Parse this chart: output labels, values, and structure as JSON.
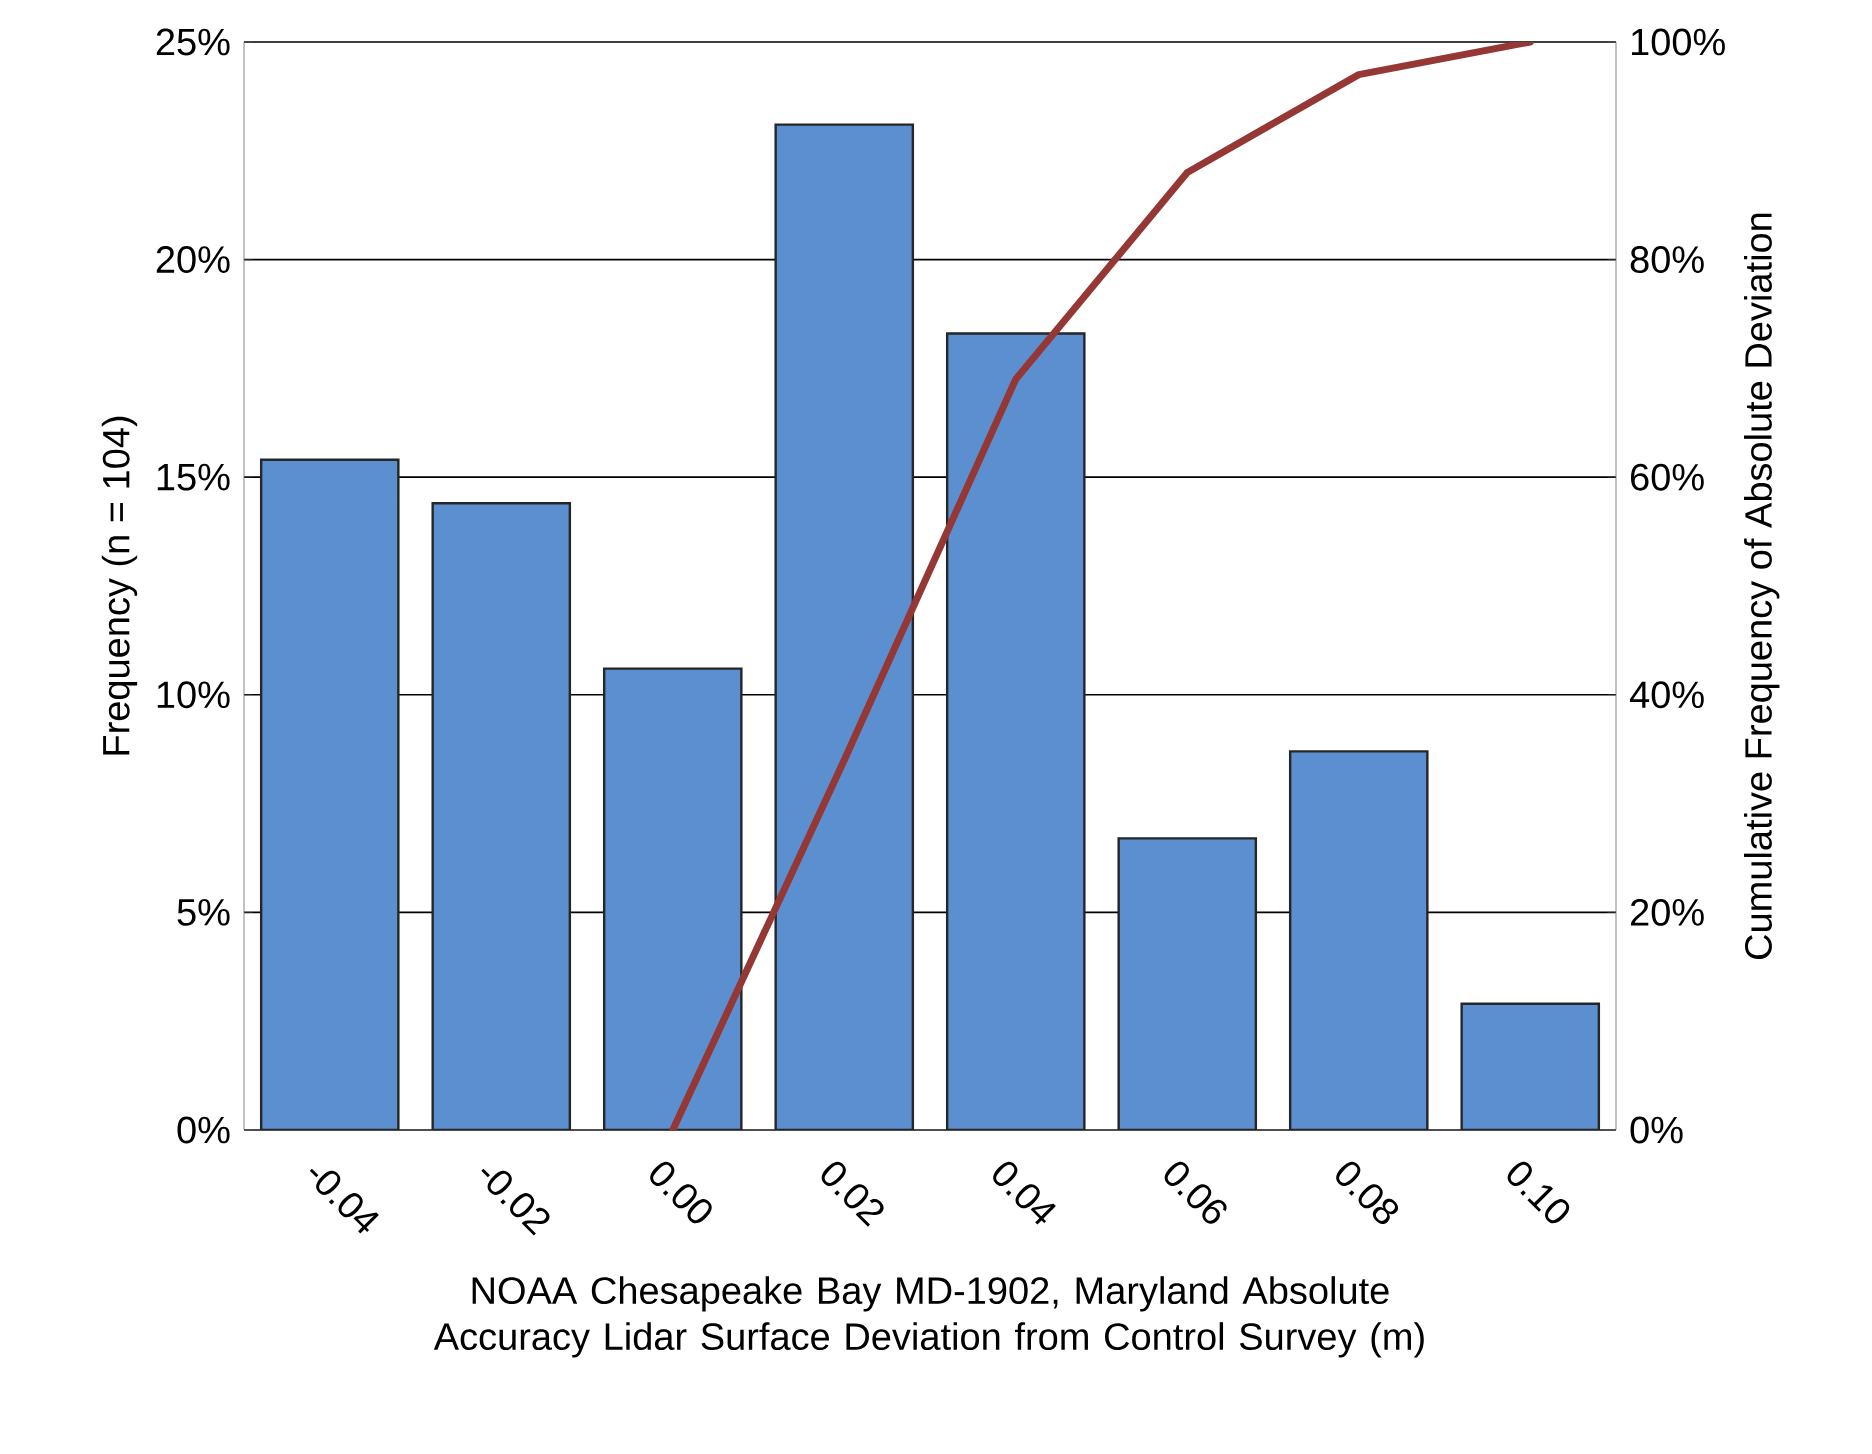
{
  "chart_data": {
    "type": "bar",
    "xlabel": "NOAA Chesapeake Bay MD-1902, Maryland Absolute Accuracy Lidar Surface Deviation from Control Survey (m)",
    "ylabel": "Frequency (n = 104)",
    "y2label": "Cumulative Frequency of Absolute Deviation",
    "categories": [
      "-0.04",
      "-0.02",
      "0.00",
      "0.02",
      "0.04",
      "0.06",
      "0.08",
      "0.10"
    ],
    "ylim": [
      0,
      25
    ],
    "yticks": [
      {
        "value": 0,
        "label": "0%"
      },
      {
        "value": 5,
        "label": "5%"
      },
      {
        "value": 10,
        "label": "10%"
      },
      {
        "value": 15,
        "label": "15%"
      },
      {
        "value": 20,
        "label": "20%"
      },
      {
        "value": 25,
        "label": "25%"
      }
    ],
    "y2lim": [
      0,
      100
    ],
    "y2ticks": [
      {
        "value": 0,
        "label": "0%"
      },
      {
        "value": 20,
        "label": "20%"
      },
      {
        "value": 40,
        "label": "40%"
      },
      {
        "value": 60,
        "label": "60%"
      },
      {
        "value": 80,
        "label": "80%"
      },
      {
        "value": 100,
        "label": "100%"
      }
    ],
    "grid": "y",
    "series": [
      {
        "color": "#5b8fcf",
        "values": [
          15.4,
          14.4,
          10.6,
          23.1,
          18.3,
          6.7,
          8.7,
          2.9
        ]
      },
      {
        "type": "line",
        "axis": "y2",
        "color": "#953735",
        "values": [
          null,
          null,
          0,
          34,
          69,
          88,
          97,
          100
        ]
      }
    ]
  }
}
